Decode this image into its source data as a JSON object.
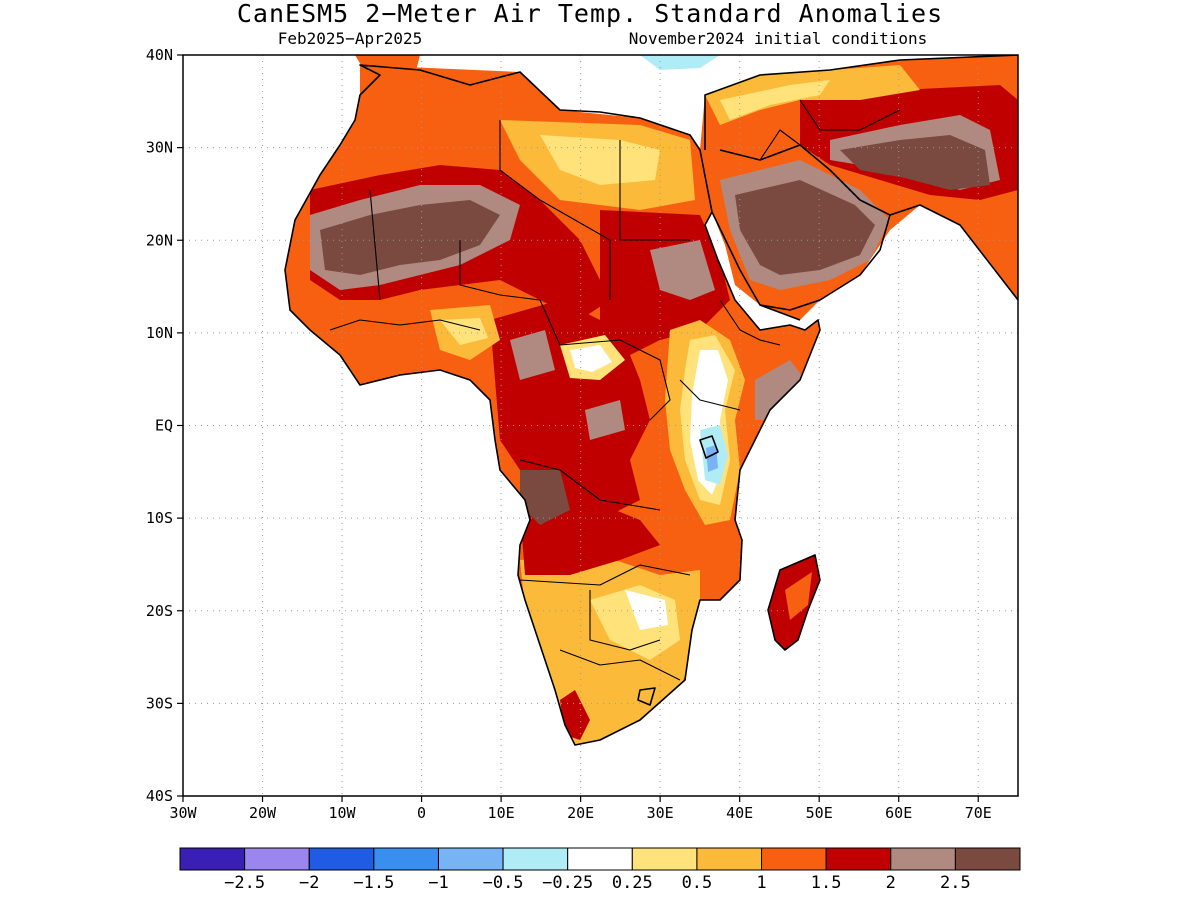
{
  "title": "CanESM5 2−Meter Air Temp. Standard Anomalies",
  "period": "Feb2025−Apr2025",
  "init": "November2024 initial conditions",
  "map": {
    "lon_range": [
      -30,
      75
    ],
    "lat_range": [
      -40,
      40
    ],
    "lat_ticks": [
      {
        "lat": 40,
        "label": "40N"
      },
      {
        "lat": 30,
        "label": "30N"
      },
      {
        "lat": 20,
        "label": "20N"
      },
      {
        "lat": 10,
        "label": "10N"
      },
      {
        "lat": 0,
        "label": "EQ"
      },
      {
        "lat": -10,
        "label": "10S"
      },
      {
        "lat": -20,
        "label": "20S"
      },
      {
        "lat": -30,
        "label": "30S"
      },
      {
        "lat": -40,
        "label": "40S"
      }
    ],
    "lon_ticks": [
      {
        "lon": -30,
        "label": "30W"
      },
      {
        "lon": -20,
        "label": "20W"
      },
      {
        "lon": -10,
        "label": "10W"
      },
      {
        "lon": 0,
        "label": "0"
      },
      {
        "lon": 10,
        "label": "10E"
      },
      {
        "lon": 20,
        "label": "20E"
      },
      {
        "lon": 30,
        "label": "30E"
      },
      {
        "lon": 40,
        "label": "40E"
      },
      {
        "lon": 50,
        "label": "50E"
      },
      {
        "lon": 60,
        "label": "60E"
      },
      {
        "lon": 70,
        "label": "70E"
      }
    ]
  },
  "colorbar": {
    "colors": [
      "#3a1fb5",
      "#9b86f0",
      "#1f5be3",
      "#3a8ef0",
      "#78b4f5",
      "#b0ecf5",
      "#ffffff",
      "#ffe27a",
      "#fbba3a",
      "#f76010",
      "#c00000",
      "#b08a80",
      "#7a4a40"
    ],
    "labels": [
      "−2.5",
      "−2",
      "−1.5",
      "−1",
      "−0.5",
      "−0.25",
      "0.25",
      "0.5",
      "1",
      "1.5",
      "2",
      "2.5"
    ]
  }
}
